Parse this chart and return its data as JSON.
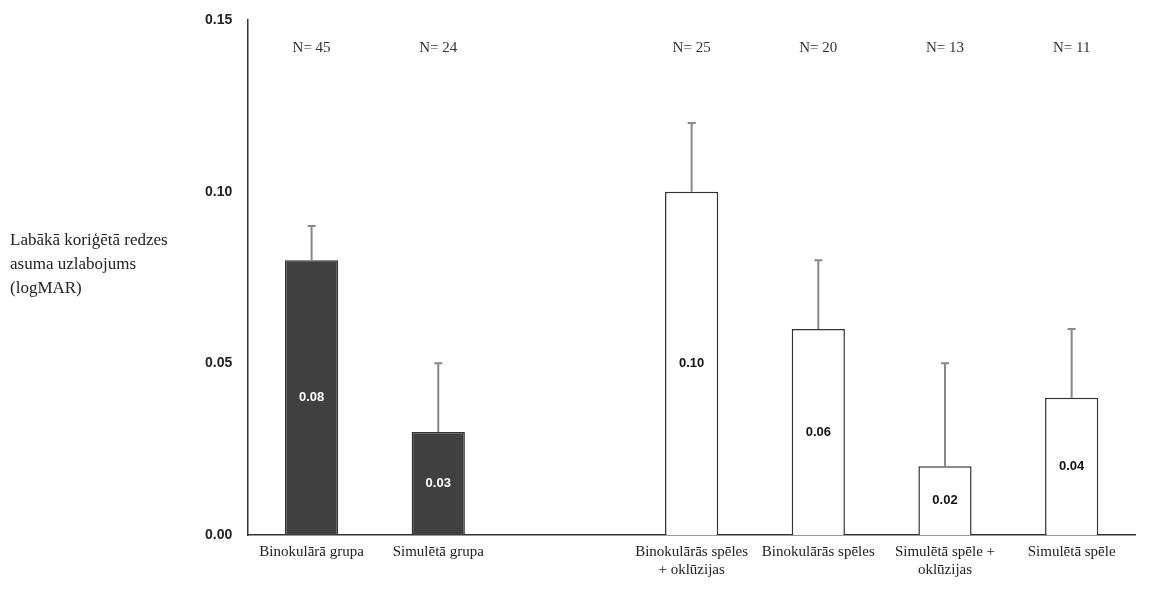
{
  "chart_data": {
    "type": "bar",
    "ylabel": "Labākā koriģētā redzes asuma uzlabojums (logMAR)",
    "categories": [
      "Binokulārā grupa",
      "Simulētā grupa",
      null,
      "Binokulārās spēles + oklūzijas",
      "Binokulārās spēles",
      "Simulētā spēle + oklūzijas",
      "Simulētā spēle"
    ],
    "values": [
      0.08,
      0.03,
      null,
      0.1,
      0.06,
      0.02,
      0.04
    ],
    "colors": [
      "#404040",
      "#404040",
      "#ffffff",
      "#ffffff",
      "#ffffff",
      "#ffffff",
      "#ffffff"
    ],
    "errors": [
      [
        0.08,
        0.09
      ],
      [
        0.03,
        0.05
      ],
      null,
      [
        0.1,
        0.12
      ],
      [
        0.06,
        0.08
      ],
      [
        0.02,
        0.05
      ],
      [
        0.04,
        0.06
      ]
    ],
    "value_labels": [
      "0.08",
      "0.03",
      null,
      "0.10",
      "0.06",
      "0.02",
      "0.04"
    ],
    "ylim": [
      0,
      0.15
    ],
    "yticks": [
      {
        "value": 0,
        "label": "0.00"
      },
      {
        "value": 0.05,
        "label": "0.05"
      },
      {
        "value": 0.1,
        "label": "0.10"
      },
      {
        "value": 0.15,
        "label": "0.15"
      }
    ],
    "annotations": [
      "N= 45",
      "N= 24",
      "N= 25",
      "N= 20",
      "N= 13",
      "N= 11"
    ]
  }
}
